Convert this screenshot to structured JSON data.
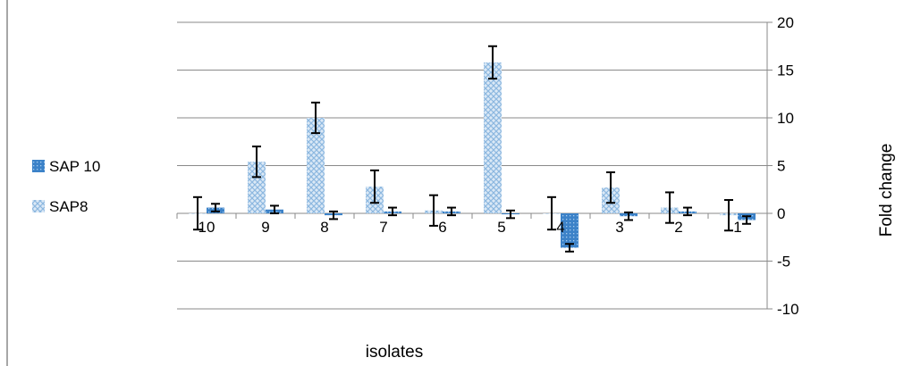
{
  "chart_data": {
    "type": "bar",
    "categories": [
      "10",
      "9",
      "8",
      "7",
      "6",
      "5",
      "4",
      "3",
      "2",
      "1"
    ],
    "series": [
      {
        "name": "SAP8",
        "pattern": "crosshatch",
        "color": "#9dc3e6",
        "values": [
          0.0,
          5.4,
          10.0,
          2.8,
          0.3,
          15.8,
          0.0,
          2.7,
          0.6,
          -0.2
        ],
        "errors": [
          1.7,
          1.6,
          1.6,
          1.7,
          1.6,
          1.7,
          1.7,
          1.6,
          1.6,
          1.6
        ]
      },
      {
        "name": "SAP 10",
        "pattern": "dots",
        "color": "#3c82c8",
        "values": [
          0.6,
          0.4,
          -0.2,
          0.2,
          0.2,
          -0.1,
          -3.6,
          -0.3,
          0.2,
          -0.7
        ],
        "errors": [
          0.4,
          0.4,
          0.4,
          0.4,
          0.4,
          0.4,
          0.4,
          0.4,
          0.4,
          0.4
        ]
      }
    ],
    "legend_order": [
      "SAP 10",
      "SAP8"
    ],
    "legend_position": "left",
    "xlabel": "isolates",
    "ylabel": "Fold change",
    "ylim": [
      -10,
      20
    ],
    "yticks": [
      -10,
      -5,
      0,
      5,
      10,
      15,
      20
    ],
    "y_axis_side": "right",
    "grid": true
  }
}
